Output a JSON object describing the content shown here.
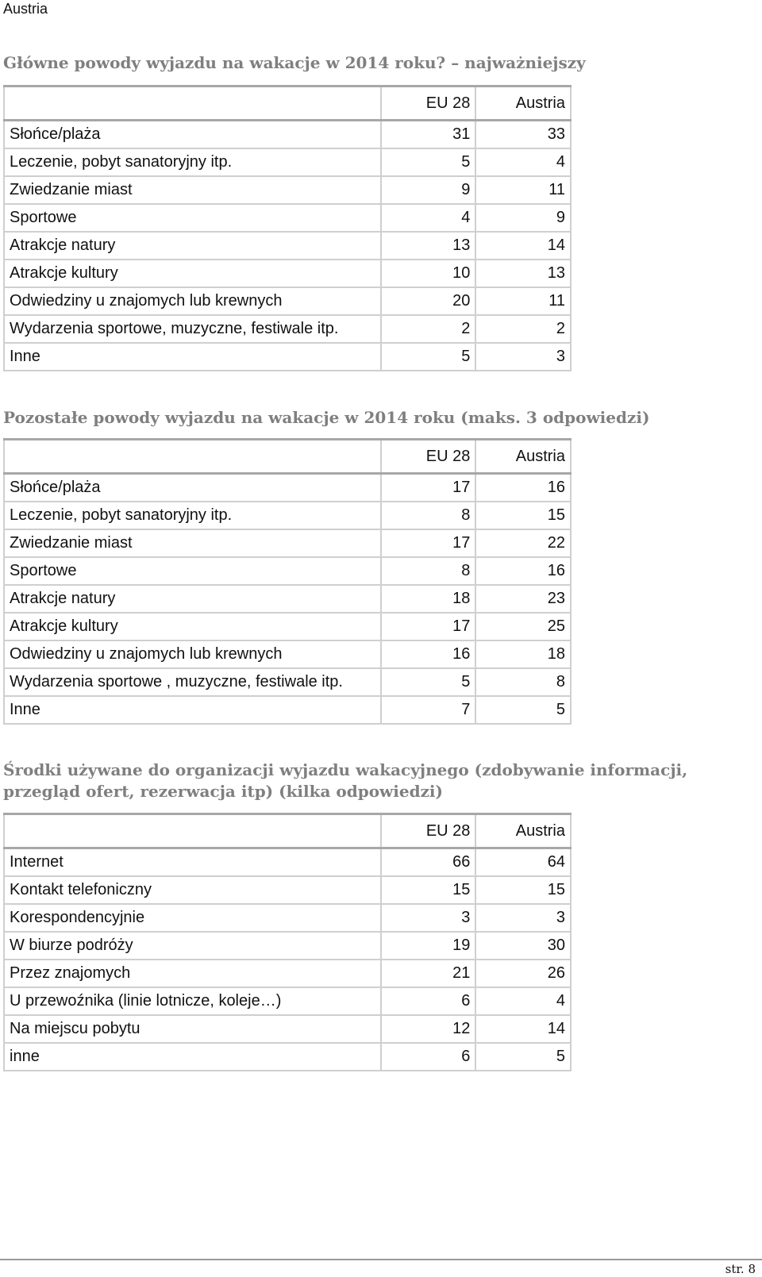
{
  "page_header": "Austria",
  "columns": [
    "EU 28",
    "Austria"
  ],
  "sections": [
    {
      "title": "Główne powody wyjazdu na wakacje w 2014 roku? – najważniejszy",
      "rows": [
        {
          "label": "Słońce/plaża",
          "eu": "31",
          "at": "33"
        },
        {
          "label": "Leczenie, pobyt sanatoryjny itp.",
          "eu": "5",
          "at": "4"
        },
        {
          "label": "Zwiedzanie miast",
          "eu": "9",
          "at": "11"
        },
        {
          "label": "Sportowe",
          "eu": "4",
          "at": "9"
        },
        {
          "label": "Atrakcje natury",
          "eu": "13",
          "at": "14"
        },
        {
          "label": "Atrakcje kultury",
          "eu": "10",
          "at": "13"
        },
        {
          "label": "Odwiedziny u znajomych lub krewnych",
          "eu": "20",
          "at": "11"
        },
        {
          "label": "Wydarzenia sportowe, muzyczne, festiwale itp.",
          "eu": "2",
          "at": "2"
        },
        {
          "label": "Inne",
          "eu": "5",
          "at": "3"
        }
      ]
    },
    {
      "title": "Pozostałe powody wyjazdu na wakacje w 2014 roku (maks. 3 odpowiedzi)",
      "rows": [
        {
          "label": "Słońce/plaża",
          "eu": "17",
          "at": "16"
        },
        {
          "label": "Leczenie, pobyt sanatoryjny itp.",
          "eu": "8",
          "at": "15"
        },
        {
          "label": "Zwiedzanie miast",
          "eu": "17",
          "at": "22"
        },
        {
          "label": "Sportowe",
          "eu": "8",
          "at": "16"
        },
        {
          "label": "Atrakcje natury",
          "eu": "18",
          "at": "23"
        },
        {
          "label": "Atrakcje kultury",
          "eu": "17",
          "at": "25"
        },
        {
          "label": "Odwiedziny u znajomych lub krewnych",
          "eu": "16",
          "at": "18"
        },
        {
          "label": "Wydarzenia sportowe , muzyczne, festiwale itp.",
          "eu": "5",
          "at": "8"
        },
        {
          "label": "Inne",
          "eu": "7",
          "at": "5"
        }
      ]
    },
    {
      "title": "Środki używane do organizacji wyjazdu wakacyjnego (zdobywanie informacji, przegląd ofert, rezerwacja itp) (kilka odpowiedzi)",
      "rows": [
        {
          "label": "Internet",
          "eu": "66",
          "at": "64"
        },
        {
          "label": "Kontakt telefoniczny",
          "eu": "15",
          "at": "15"
        },
        {
          "label": "Korespondencyjnie",
          "eu": "3",
          "at": "3"
        },
        {
          "label": "W biurze podróży",
          "eu": "19",
          "at": "30"
        },
        {
          "label": "Przez znajomych",
          "eu": "21",
          "at": "26"
        },
        {
          "label": "U przewoźnika (linie lotnicze, koleje…)",
          "eu": "6",
          "at": "4"
        },
        {
          "label": "Na miejscu pobytu",
          "eu": "12",
          "at": "14"
        },
        {
          "label": "inne",
          "eu": "6",
          "at": "5"
        }
      ]
    }
  ],
  "page_number": "str. 8"
}
